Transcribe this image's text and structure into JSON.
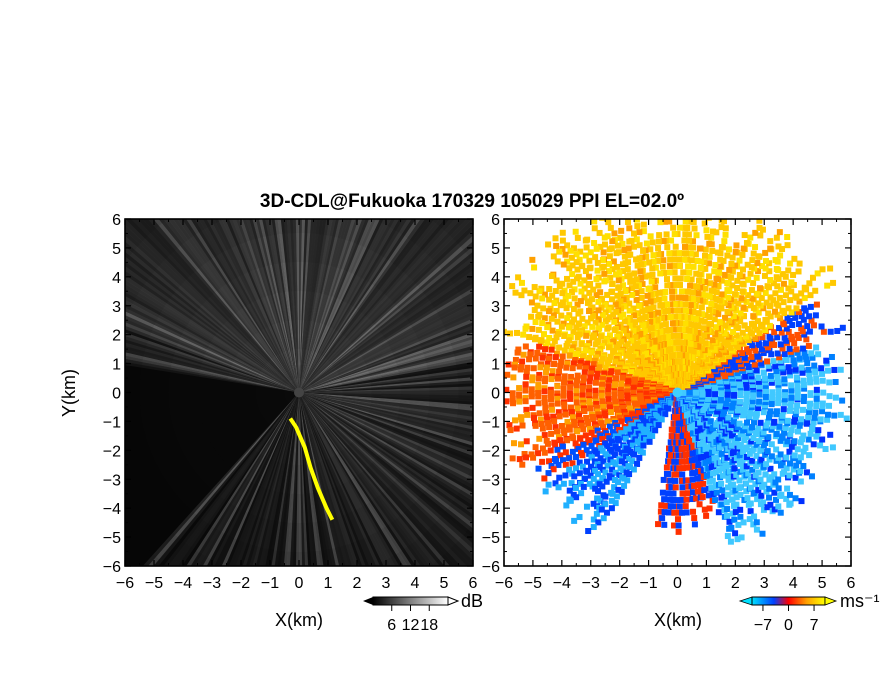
{
  "chart_data": [
    {
      "type": "heatmap",
      "title": "3D-CDL@Fukuoka 170329 105029 PPI EL=02.0º",
      "variable": "signal intensity (gray scale)",
      "xlabel": "X(km)",
      "ylabel": "Y(km)",
      "xlim": [
        -6,
        6
      ],
      "ylim": [
        -6,
        6
      ],
      "x_ticks": [
        "−6",
        "−5",
        "−4",
        "−3",
        "−2",
        "−1",
        "0",
        "1",
        "2",
        "3",
        "4",
        "5",
        "6"
      ],
      "y_ticks": [
        "−6",
        "−5",
        "−4",
        "−3",
        "−2",
        "−1",
        "0",
        "1",
        "2",
        "3",
        "4",
        "5",
        "6"
      ],
      "colorbar": {
        "unit": "dB",
        "range": [
          0,
          24
        ],
        "tick_labels": [
          "6",
          "12",
          "18"
        ],
        "colors": [
          "#000000",
          "#ffffff"
        ]
      },
      "highlight_color": "#ffff00",
      "radar_center": [
        0,
        0
      ],
      "blocked_sector_deg": [
        170,
        228
      ]
    },
    {
      "type": "heatmap",
      "variable": "radial velocity",
      "xlabel": "X(km)",
      "xlim": [
        -6,
        6
      ],
      "ylim": [
        -6,
        6
      ],
      "x_ticks": [
        "−6",
        "−5",
        "−4",
        "−3",
        "−2",
        "−1",
        "0",
        "1",
        "2",
        "3",
        "4",
        "5",
        "6"
      ],
      "y_ticks": [
        "−6",
        "−5",
        "−4",
        "−3",
        "−2",
        "−1",
        "0",
        "1",
        "2",
        "3",
        "4",
        "5",
        "6"
      ],
      "colorbar": {
        "unit": "ms⁻¹",
        "range": [
          -10,
          10
        ],
        "tick_labels": [
          "−7",
          "0",
          "7"
        ],
        "colors": [
          "#00e0ff",
          "#0040ff",
          "#ff0000",
          "#ffa000",
          "#ffff00"
        ]
      },
      "radar_center": [
        0,
        0
      ]
    }
  ]
}
